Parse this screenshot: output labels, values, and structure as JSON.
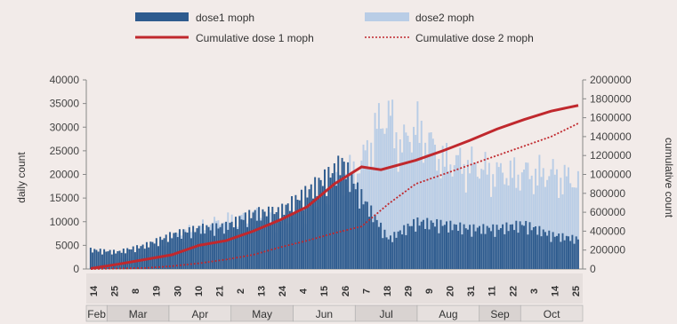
{
  "chart_data": {
    "type": "bar",
    "ylabel": "daily count",
    "y2label": "cumulative count",
    "ylim": [
      0,
      40000
    ],
    "y2lim": [
      0,
      2000000
    ],
    "yticks": [
      "40000",
      "35000",
      "30000",
      "25000",
      "20000",
      "15000",
      "10000",
      "5000",
      "0"
    ],
    "y2ticks": [
      "2000000",
      "1800000",
      "1600000",
      "1400000",
      "1200000",
      "1000000",
      "800000",
      "600000",
      "400000",
      "200000",
      "0"
    ],
    "legend": {
      "dose1": "dose1  moph",
      "dose2": "dose2  moph",
      "cum1": "Cumulative dose 1 moph",
      "cum2": "Cumulative dose 2 moph"
    },
    "colors": {
      "dose1": "#2e5b8e",
      "dose2": "#b9cde6",
      "cum1": "#c0282d",
      "cum2": "#c0282d"
    },
    "months": [
      "Feb",
      "Mar",
      "Apr",
      "May",
      "Jun",
      "Jul",
      "Aug",
      "Sep",
      "Oct"
    ],
    "day_ticks": [
      "14",
      "25",
      "8",
      "19",
      "30",
      "10",
      "21",
      "2",
      "13",
      "24",
      "4",
      "15",
      "26",
      "7",
      "18",
      "29",
      "9",
      "20",
      "31",
      "11",
      "22",
      "3",
      "14",
      "25"
    ],
    "series": [
      {
        "name": "dose1 moph",
        "x": [
          0,
          14,
          28,
          42,
          56,
          70,
          84,
          98,
          112,
          126,
          130,
          140,
          154,
          168,
          182,
          196,
          210,
          224,
          238,
          252
        ],
        "values": [
          4500,
          4000,
          5500,
          8000,
          9500,
          10000,
          13000,
          13500,
          18000,
          23000,
          25000,
          17000,
          7000,
          11000,
          10500,
          9500,
          9500,
          10500,
          8000,
          7000
        ]
      },
      {
        "name": "dose2 moph",
        "x": [
          0,
          14,
          28,
          42,
          56,
          70,
          84,
          98,
          112,
          126,
          140,
          147,
          154,
          161,
          168,
          182,
          196,
          210,
          224,
          238,
          252
        ],
        "values": [
          500,
          2000,
          3500,
          7000,
          9500,
          11000,
          12000,
          11000,
          13000,
          19500,
          24000,
          32000,
          35500,
          28000,
          33000,
          25000,
          24000,
          22000,
          22000,
          22000,
          20000
        ]
      },
      {
        "name": "Cumulative dose 1 moph",
        "x": [
          0,
          14,
          28,
          42,
          56,
          70,
          84,
          98,
          112,
          126,
          140,
          150,
          168,
          182,
          196,
          210,
          224,
          238,
          252
        ],
        "values": [
          5000,
          50000,
          100000,
          150000,
          250000,
          300000,
          400000,
          520000,
          660000,
          900000,
          1080000,
          1050000,
          1150000,
          1250000,
          1360000,
          1480000,
          1580000,
          1670000,
          1730000
        ]
      },
      {
        "name": "Cumulative dose 2 moph",
        "x": [
          0,
          14,
          28,
          42,
          56,
          70,
          84,
          98,
          112,
          126,
          140,
          154,
          168,
          182,
          196,
          210,
          224,
          238,
          252
        ],
        "values": [
          0,
          5000,
          10000,
          30000,
          60000,
          100000,
          150000,
          230000,
          300000,
          380000,
          450000,
          690000,
          900000,
          1000000,
          1100000,
          1200000,
          1300000,
          1400000,
          1540000
        ]
      }
    ]
  }
}
